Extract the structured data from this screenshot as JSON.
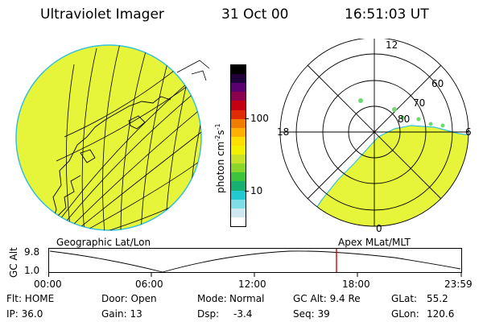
{
  "header": {
    "instrument": "Ultraviolet Imager",
    "date": "31 Oct 00",
    "time": "16:51:03 UT"
  },
  "colorbar": {
    "unit_label": "photon cm",
    "unit_exp1": "-2",
    "unit_mid": "s",
    "unit_exp2": "-1",
    "ticks": [
      "100",
      "10"
    ],
    "colors": [
      "#ffffff",
      "#cfe8f0",
      "#7fdde8",
      "#22c9d0",
      "#16b070",
      "#3cc43c",
      "#8bd62a",
      "#c8e22a",
      "#f2f200",
      "#ffdf00",
      "#ffb000",
      "#f07c00",
      "#e02c00",
      "#c40012",
      "#8c0050",
      "#5a0070",
      "#200038",
      "#000000"
    ]
  },
  "geographic_panel": {
    "label": "Geographic Lat/Lon",
    "fill_color": "#e6f53a"
  },
  "polar_panel": {
    "label": "Apex MLat/MLT",
    "mlt_labels": {
      "top": "12",
      "left": "18",
      "right": "6",
      "bottom": "0"
    },
    "lat_labels": [
      "60",
      "70",
      "80"
    ],
    "fill_color": "#e6f53a"
  },
  "altitude_plot": {
    "ylabel": "GC Alt",
    "y_ticks": [
      "9.8",
      "1.0"
    ],
    "x_ticks": [
      "00:00",
      "06:00",
      "12:00",
      "18:00",
      "23:59"
    ],
    "current_marker_color": "#e00000"
  },
  "status": {
    "flt": "Flt: HOME",
    "ip": "IP: 36.0",
    "door": "Door: Open",
    "gain": "Gain: 13",
    "mode_label": "Mode:",
    "mode_value": "Normal",
    "dsp_label": "Dsp:",
    "dsp_value": "-3.4",
    "gc_alt": "GC Alt: 9.4 Re",
    "seq": "Seq: 39",
    "glat_label": "GLat:",
    "glat_value": "55.2",
    "glon_label": "GLon:",
    "glon_value": "120.6"
  }
}
